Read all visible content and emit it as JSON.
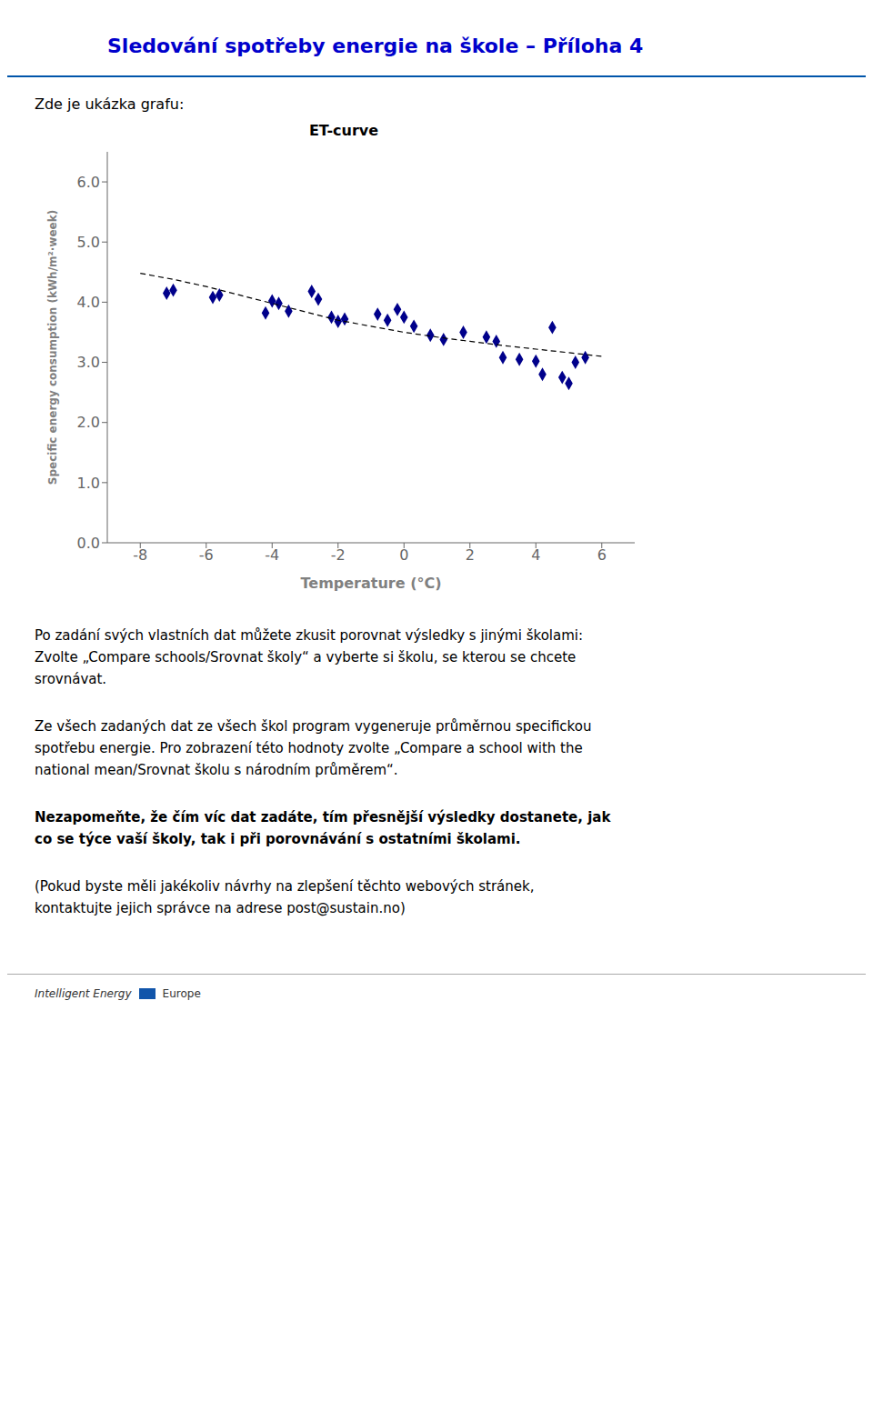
{
  "page": {
    "header_title": "Sledování spotřeby energie na škole – Příloha 4",
    "subtitle": "Zde je ukázka grafu:",
    "paragraphs": [
      "Po zadání svých vlastních dat můžete zkusit porovnat výsledky s jinými školami:\nZvolte „Compare schools/Srovnat školy“ a vyberte si školu, se kterou se chcete\nsrovnávat.",
      "Ze všech zadaných dat ze všech škol program vygeneruje průměrnou specifickou\nspotřebu energie. Pro zobrazení této hodnoty zvolte „Compare a school with the\nnational mean/Srovnat školu s národním průměrem“."
    ],
    "bold_paragraph": "Nezapomeňte, že čím víc dat zadáte, tím přesnější výsledky dostanete, jak\nco se týce vaší školy, tak i při porovnávání s ostatními školami.",
    "last_paragraph": "(Pokud byste měli jakékoliv návrhy na zlepšení těchto webových stránek,\nkontaktujte jejich správce na adrese post@sustain.no)",
    "footer": [
      "Intelligent Energy",
      "Europe"
    ]
  },
  "chart_data": {
    "type": "scatter",
    "title": "ET-curve",
    "xlabel": "Temperature (°C)",
    "ylabel": "Specific energy consumption (kWh/m²·week)",
    "xlim": [
      -9,
      7
    ],
    "ylim": [
      0.0,
      6.5
    ],
    "xticks": [
      -8,
      -6,
      -4,
      -2,
      0,
      2,
      4,
      6
    ],
    "yticks": [
      {
        "value": 0.0,
        "label": "0.0"
      },
      {
        "value": 1.0,
        "label": "1.0"
      },
      {
        "value": 2.0,
        "label": "2.0"
      },
      {
        "value": 3.0,
        "label": "3.0"
      },
      {
        "value": 4.0,
        "label": "4.0"
      },
      {
        "value": 5.0,
        "label": "5.0"
      },
      {
        "value": 6.0,
        "label": "6.0"
      }
    ],
    "grid": false,
    "series": [
      {
        "type": "scatter",
        "color": "#00008B",
        "marker": "diamond",
        "x": [
          -7.2,
          -7.0,
          -5.8,
          -5.6,
          -4.2,
          -4.0,
          -3.8,
          -3.5,
          -2.8,
          -2.6,
          -2.2,
          -2.0,
          -1.8,
          -0.8,
          -0.5,
          -0.2,
          0.0,
          0.3,
          0.8,
          1.2,
          1.8,
          2.5,
          2.8,
          3.0,
          3.5,
          4.0,
          4.2,
          4.5,
          4.8,
          5.0,
          5.2,
          5.5
        ],
        "values": [
          4.15,
          4.2,
          4.08,
          4.12,
          3.82,
          4.02,
          3.98,
          3.85,
          4.18,
          4.05,
          3.75,
          3.68,
          3.72,
          3.8,
          3.7,
          3.88,
          3.75,
          3.6,
          3.45,
          3.38,
          3.5,
          3.42,
          3.35,
          3.08,
          3.05,
          3.02,
          2.8,
          3.58,
          2.75,
          2.65,
          3.0,
          3.08
        ]
      },
      {
        "type": "line",
        "color": "#000000",
        "line_style": "dashed",
        "x": [
          -8.0,
          -7.0,
          -6.0,
          -5.0,
          -4.0,
          -3.0,
          -2.0,
          -1.0,
          0.0,
          1.0,
          2.0,
          3.0,
          4.0,
          5.0,
          6.0
        ],
        "values": [
          4.48,
          4.38,
          4.26,
          4.12,
          3.98,
          3.84,
          3.7,
          3.6,
          3.5,
          3.42,
          3.35,
          3.28,
          3.22,
          3.16,
          3.1
        ]
      }
    ]
  }
}
